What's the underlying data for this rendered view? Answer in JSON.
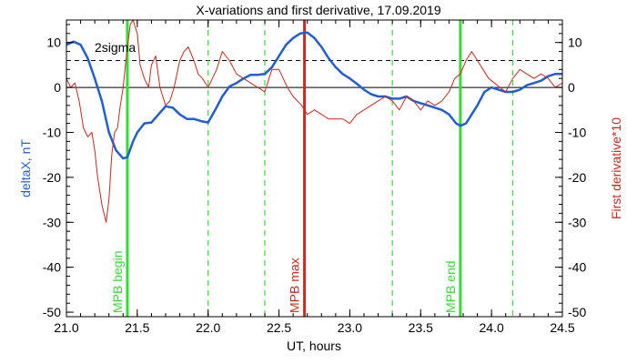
{
  "chart_data": {
    "type": "line",
    "title": "X-variations and first derivative, 17.09.2019",
    "xlabel": "UT, hours",
    "ylabel_left": "deltaX, nT",
    "ylabel_right": "First derivative*10",
    "xlim": [
      21.0,
      24.5
    ],
    "ylim": [
      -51,
      15
    ],
    "x_ticks": [
      "21.0",
      "21.5",
      "22.0",
      "22.5",
      "23.0",
      "23.5",
      "24.0",
      "24.5"
    ],
    "x_tick_values": [
      21.0,
      21.5,
      22.0,
      22.5,
      23.0,
      23.5,
      24.0,
      24.5
    ],
    "y_ticks": [
      "10",
      "0",
      "-10",
      "-20",
      "-30",
      "-40",
      "-50"
    ],
    "y_tick_values": [
      10,
      0,
      -10,
      -20,
      -30,
      -40,
      -50
    ],
    "zero_line": 0,
    "sigma_level": 6,
    "sigma_label": "2sigma",
    "colors": {
      "deltaX": "#1f5fd6",
      "derivative": "#d0281a",
      "mpb": "#33dd33",
      "mpb_max": "#d0281a",
      "dashed_green": "#33dd33",
      "axis_left_label": "#1f5fd6",
      "axis_right_label": "#d0281a"
    },
    "series": [
      {
        "role": "deltaX",
        "x": [
          21.0,
          21.05,
          21.1,
          21.15,
          21.2,
          21.25,
          21.3,
          21.35,
          21.4,
          21.43,
          21.47,
          21.5,
          21.55,
          21.6,
          21.65,
          21.7,
          21.75,
          21.8,
          21.85,
          21.9,
          21.95,
          22.0,
          22.05,
          22.1,
          22.15,
          22.2,
          22.25,
          22.3,
          22.35,
          22.4,
          22.45,
          22.5,
          22.55,
          22.6,
          22.65,
          22.7,
          22.75,
          22.8,
          22.85,
          22.9,
          22.95,
          23.0,
          23.05,
          23.1,
          23.15,
          23.2,
          23.25,
          23.3,
          23.35,
          23.4,
          23.45,
          23.5,
          23.55,
          23.6,
          23.65,
          23.7,
          23.75,
          23.78,
          23.82,
          23.85,
          23.9,
          23.95,
          24.0,
          24.05,
          24.1,
          24.15,
          24.2,
          24.25,
          24.3,
          24.35,
          24.4,
          24.45,
          24.5
        ],
        "values": [
          9.5,
          10.2,
          9.5,
          6.5,
          2,
          -3,
          -10,
          -14,
          -15.8,
          -15.5,
          -12,
          -10,
          -8,
          -7.8,
          -6,
          -4.2,
          -4.5,
          -6,
          -7,
          -7,
          -7.5,
          -7.8,
          -5,
          -2,
          0.2,
          1,
          2,
          2.8,
          2.8,
          3,
          4.5,
          7,
          9.5,
          11,
          12,
          12.2,
          11,
          9,
          6.5,
          4.5,
          3,
          2,
          0.8,
          -0.5,
          -1.5,
          -2,
          -2,
          -2.5,
          -2.5,
          -2,
          -3,
          -3.5,
          -4,
          -4.5,
          -5,
          -6,
          -8,
          -8.5,
          -8,
          -6.5,
          -4,
          -1,
          0,
          -0.5,
          -1,
          -1,
          -0.5,
          0.5,
          1,
          1.5,
          2.5,
          3,
          3
        ]
      },
      {
        "role": "derivative",
        "x": [
          21.0,
          21.03,
          21.06,
          21.09,
          21.12,
          21.15,
          21.18,
          21.2,
          21.22,
          21.25,
          21.28,
          21.3,
          21.32,
          21.34,
          21.36,
          21.38,
          21.4,
          21.42,
          21.45,
          21.47,
          21.5,
          21.52,
          21.55,
          21.58,
          21.6,
          21.63,
          21.66,
          21.7,
          21.73,
          21.76,
          21.8,
          21.83,
          21.86,
          21.9,
          21.93,
          21.96,
          22.0,
          22.03,
          22.06,
          22.1,
          22.15,
          22.2,
          22.25,
          22.3,
          22.35,
          22.4,
          22.45,
          22.5,
          22.53,
          22.56,
          22.6,
          22.63,
          22.66,
          22.7,
          22.75,
          22.8,
          22.85,
          22.9,
          22.95,
          23.0,
          23.05,
          23.1,
          23.15,
          23.2,
          23.25,
          23.3,
          23.35,
          23.4,
          23.45,
          23.5,
          23.55,
          23.6,
          23.65,
          23.7,
          23.74,
          23.78,
          23.82,
          23.86,
          23.9,
          23.94,
          23.98,
          24.02,
          24.06,
          24.1,
          24.15,
          24.2,
          24.25,
          24.3,
          24.35,
          24.4,
          24.45,
          24.5
        ],
        "values": [
          2,
          0,
          1,
          -3,
          -9,
          -11,
          -10,
          -14,
          -20,
          -26,
          -30,
          -25,
          -15,
          -10,
          -9,
          -4,
          0,
          6,
          14,
          15,
          12,
          5,
          2,
          0,
          5,
          7,
          0,
          -4,
          -3,
          0,
          6,
          8,
          9,
          6,
          3,
          2,
          0,
          2,
          4,
          8,
          6,
          3,
          2,
          1,
          0,
          -1,
          4,
          4,
          2,
          0,
          -2,
          -3,
          -4,
          -6,
          -5,
          -6,
          -7,
          -7,
          -7,
          -8,
          -6,
          -5,
          -4,
          -3,
          -2,
          -3,
          -5,
          -2,
          -3,
          -5,
          -3,
          -4,
          -3,
          -1,
          2,
          3,
          6,
          8,
          6,
          4,
          2,
          1,
          0,
          -1,
          2,
          4,
          3,
          2,
          3,
          2,
          0,
          1
        ]
      }
    ],
    "vlines": [
      {
        "x": 21.43,
        "style": "solid",
        "role": "mpb",
        "label": "MPB begin"
      },
      {
        "x": 22.0,
        "style": "dashed",
        "role": "dashed_green",
        "label": ""
      },
      {
        "x": 22.4,
        "style": "dashed",
        "role": "dashed_green",
        "label": ""
      },
      {
        "x": 22.68,
        "style": "solid",
        "role": "mpb_max",
        "label": "MPB max"
      },
      {
        "x": 23.3,
        "style": "dashed",
        "role": "dashed_green",
        "label": ""
      },
      {
        "x": 23.78,
        "style": "solid",
        "role": "mpb",
        "label": "MPB end"
      },
      {
        "x": 24.15,
        "style": "dashed",
        "role": "dashed_green",
        "label": ""
      }
    ],
    "legend": "none",
    "grid": false
  }
}
